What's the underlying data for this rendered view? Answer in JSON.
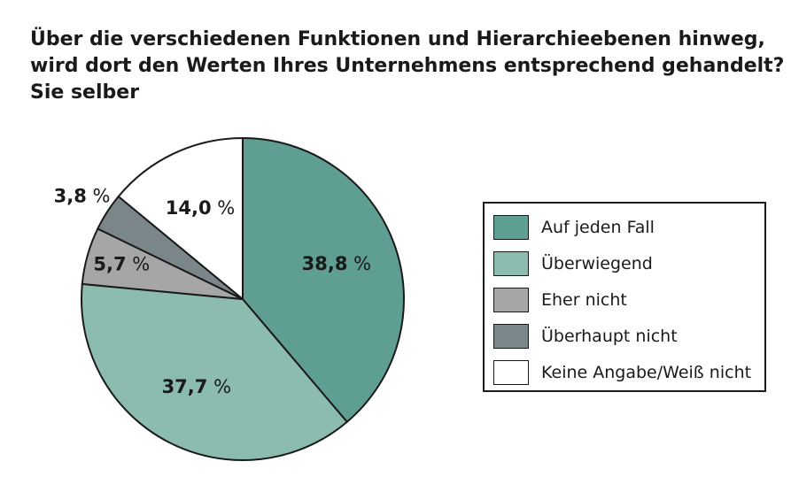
{
  "title": {
    "line1": "Über die verschiedenen Funktionen und Hierarchieebenen hinweg,",
    "line2": "wird dort den Werten Ihres Unternehmens entsprechend gehandelt?",
    "line3": "Sie selber"
  },
  "chart_data": {
    "type": "pie",
    "categories": [
      "Auf jeden Fall",
      "Überwiegend",
      "Eher nicht",
      "Überhaupt nicht",
      "Keine Angabe/Weiß nicht"
    ],
    "values": [
      38.8,
      37.7,
      5.7,
      3.8,
      14.0
    ],
    "value_labels": [
      "38,8",
      "37,7",
      "5,7",
      "3,8",
      "14,0"
    ],
    "unit": "%",
    "colors": [
      "#5f9e92",
      "#8cbcb0",
      "#a6a6a6",
      "#7b868b",
      "#ffffff"
    ],
    "start": "12 o'clock",
    "direction": "clockwise",
    "legend_placement": "right"
  }
}
